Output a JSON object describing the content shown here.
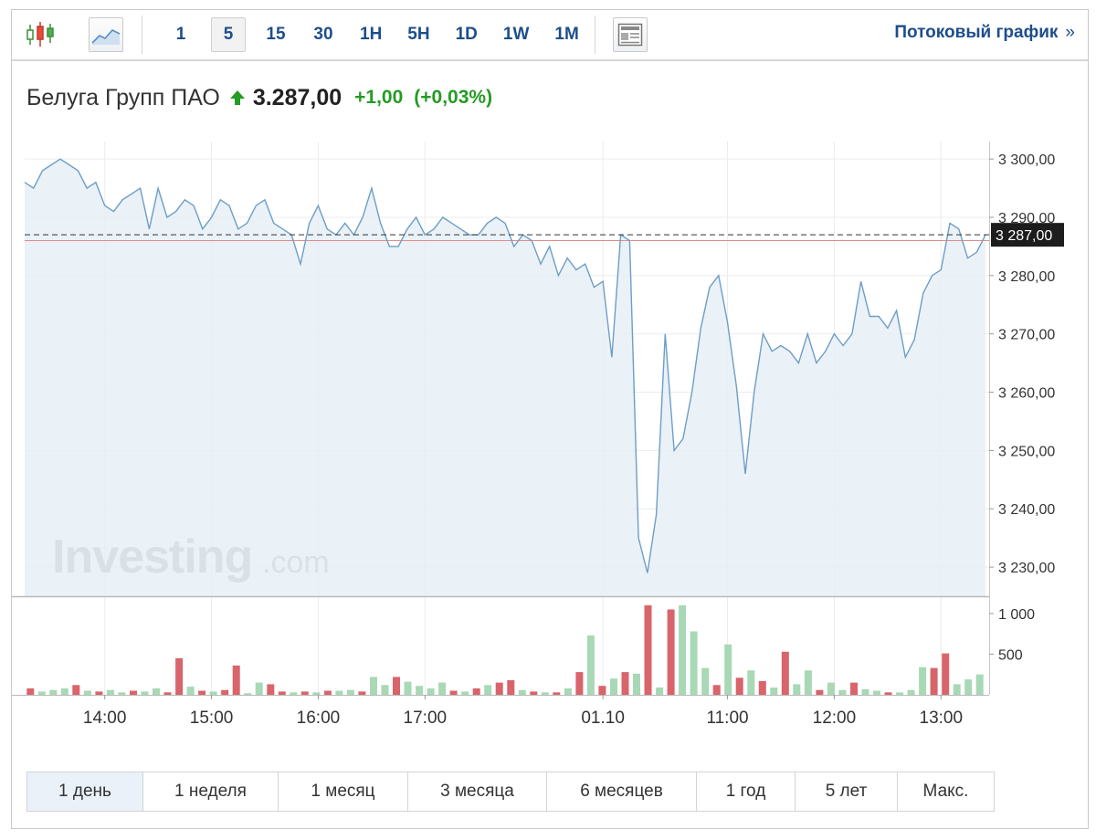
{
  "toolbar": {
    "chart_type_icons": [
      "candlestick-icon",
      "area-chart-icon",
      "news-icon"
    ],
    "intervals": [
      "1",
      "5",
      "15",
      "30",
      "1H",
      "5H",
      "1D",
      "1W",
      "1M"
    ],
    "active_interval": "5",
    "stream_link": "Потоковый график",
    "stream_arrow": "»"
  },
  "quote": {
    "name": "Белуга Групп ПАО",
    "direction": "up",
    "price": "3.287,00",
    "change": "+1,00",
    "change_pct": "(+0,03%)",
    "color_up": "#259b24"
  },
  "chart_data": {
    "type": "area",
    "ylim": [
      3225,
      3303
    ],
    "y_ticks": [
      "3 300,00",
      "3 290,00",
      "3 280,00",
      "3 270,00",
      "3 260,00",
      "3 250,00",
      "3 240,00",
      "3 230,00"
    ],
    "y_tick_values": [
      3300,
      3290,
      3280,
      3270,
      3260,
      3250,
      3240,
      3230
    ],
    "x_ticks": [
      "14:00",
      "15:00",
      "16:00",
      "17:00",
      "01.10",
      "11:00",
      "12:00",
      "13:00"
    ],
    "x_tick_index": [
      9,
      21,
      33,
      45,
      65,
      79,
      91,
      103
    ],
    "last_price_label": "3 287,00",
    "last_price": 3287,
    "prev_close": 3286,
    "line_color": "#6e9ec6",
    "fill_color": "#e6eef6",
    "series": [
      {
        "values": [
          3296,
          3295,
          3298,
          3299,
          3300,
          3299,
          3298,
          3295,
          3296,
          3292,
          3291,
          3293,
          3294,
          3295,
          3288,
          3295,
          3290,
          3291,
          3293,
          3292,
          3288,
          3290,
          3293,
          3292,
          3288,
          3289,
          3292,
          3293,
          3289,
          3288,
          3287,
          3282,
          3289,
          3292,
          3288,
          3287,
          3289,
          3287,
          3290,
          3295,
          3289,
          3285,
          3285,
          3288,
          3290,
          3287,
          3288,
          3290,
          3289,
          3288,
          3287,
          3287,
          3289,
          3290,
          3289,
          3285,
          3287,
          3286,
          3282,
          3285,
          3280,
          3283,
          3281,
          3282,
          3278,
          3279,
          3266,
          3287,
          3286,
          3235,
          3229,
          3239,
          3270,
          3250,
          3252,
          3260,
          3271,
          3278,
          3280,
          3272,
          3261,
          3246,
          3260,
          3270,
          3267,
          3268,
          3267,
          3265,
          3270,
          3265,
          3267,
          3270,
          3268,
          3270,
          3279,
          3273,
          3273,
          3271,
          3274,
          3266,
          3269,
          3277,
          3280,
          3281,
          3289,
          3288,
          3283,
          3284,
          3287
        ]
      }
    ],
    "volume": {
      "y_ticks": [
        "1 000",
        "500"
      ],
      "y_tick_values": [
        1000,
        500
      ],
      "ymax": 1100,
      "up_color": "#a8d8b5",
      "down_color": "#d9646b",
      "bars": [
        {
          "v": 80,
          "up": false
        },
        {
          "v": 40,
          "up": true
        },
        {
          "v": 60,
          "up": true
        },
        {
          "v": 80,
          "up": true
        },
        {
          "v": 120,
          "up": false
        },
        {
          "v": 50,
          "up": true
        },
        {
          "v": 40,
          "up": false
        },
        {
          "v": 60,
          "up": true
        },
        {
          "v": 30,
          "up": true
        },
        {
          "v": 50,
          "up": false
        },
        {
          "v": 40,
          "up": true
        },
        {
          "v": 80,
          "up": true
        },
        {
          "v": 30,
          "up": false
        },
        {
          "v": 450,
          "up": false
        },
        {
          "v": 100,
          "up": true
        },
        {
          "v": 50,
          "up": false
        },
        {
          "v": 40,
          "up": true
        },
        {
          "v": 60,
          "up": false
        },
        {
          "v": 360,
          "up": false
        },
        {
          "v": 20,
          "up": true
        },
        {
          "v": 150,
          "up": true
        },
        {
          "v": 130,
          "up": false
        },
        {
          "v": 40,
          "up": false
        },
        {
          "v": 30,
          "up": true
        },
        {
          "v": 40,
          "up": false
        },
        {
          "v": 30,
          "up": true
        },
        {
          "v": 50,
          "up": false
        },
        {
          "v": 50,
          "up": true
        },
        {
          "v": 60,
          "up": true
        },
        {
          "v": 40,
          "up": false
        },
        {
          "v": 220,
          "up": true
        },
        {
          "v": 120,
          "up": true
        },
        {
          "v": 220,
          "up": false
        },
        {
          "v": 160,
          "up": true
        },
        {
          "v": 110,
          "up": true
        },
        {
          "v": 80,
          "up": true
        },
        {
          "v": 150,
          "up": true
        },
        {
          "v": 50,
          "up": false
        },
        {
          "v": 40,
          "up": true
        },
        {
          "v": 80,
          "up": false
        },
        {
          "v": 120,
          "up": true
        },
        {
          "v": 150,
          "up": false
        },
        {
          "v": 180,
          "up": false
        },
        {
          "v": 60,
          "up": true
        },
        {
          "v": 40,
          "up": false
        },
        {
          "v": 30,
          "up": true
        },
        {
          "v": 30,
          "up": false
        },
        {
          "v": 80,
          "up": true
        },
        {
          "v": 280,
          "up": false
        },
        {
          "v": 730,
          "up": true
        },
        {
          "v": 110,
          "up": false
        },
        {
          "v": 200,
          "up": true
        },
        {
          "v": 280,
          "up": false
        },
        {
          "v": 260,
          "up": true
        },
        {
          "v": 1340,
          "up": false
        },
        {
          "v": 90,
          "up": true
        },
        {
          "v": 1050,
          "up": false
        },
        {
          "v": 1160,
          "up": true
        },
        {
          "v": 780,
          "up": true
        },
        {
          "v": 330,
          "up": true
        },
        {
          "v": 120,
          "up": false
        },
        {
          "v": 620,
          "up": true
        },
        {
          "v": 210,
          "up": false
        },
        {
          "v": 300,
          "up": true
        },
        {
          "v": 170,
          "up": false
        },
        {
          "v": 90,
          "up": true
        },
        {
          "v": 530,
          "up": false
        },
        {
          "v": 130,
          "up": true
        },
        {
          "v": 300,
          "up": true
        },
        {
          "v": 60,
          "up": false
        },
        {
          "v": 150,
          "up": true
        },
        {
          "v": 60,
          "up": true
        },
        {
          "v": 150,
          "up": false
        },
        {
          "v": 70,
          "up": true
        },
        {
          "v": 50,
          "up": true
        },
        {
          "v": 30,
          "up": false
        },
        {
          "v": 30,
          "up": true
        },
        {
          "v": 60,
          "up": true
        },
        {
          "v": 340,
          "up": true
        },
        {
          "v": 330,
          "up": false
        },
        {
          "v": 510,
          "up": false
        },
        {
          "v": 130,
          "up": true
        },
        {
          "v": 190,
          "up": true
        },
        {
          "v": 250,
          "up": true
        }
      ]
    }
  },
  "watermark": {
    "brand": "Investing",
    "suffix": ".com"
  },
  "ranges": {
    "items": [
      "1 день",
      "1 неделя",
      "1 месяц",
      "3 месяца",
      "6 месяцев",
      "1 год",
      "5 лет",
      "Макс."
    ],
    "active": "1 день"
  }
}
